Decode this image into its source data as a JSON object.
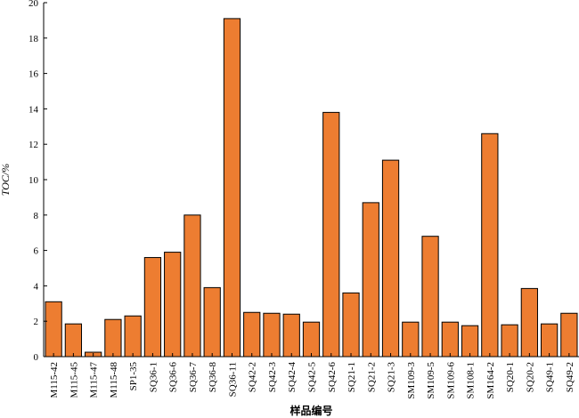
{
  "chart_data": {
    "type": "bar",
    "title": "",
    "xlabel": "样品编号",
    "ylabel": "TOC/%",
    "ylim": [
      0,
      20
    ],
    "yticks": [
      0,
      2,
      4,
      6,
      8,
      10,
      12,
      14,
      16,
      18,
      20
    ],
    "bar_color": "#ed7d31",
    "grid": false,
    "legend": "none",
    "categories": [
      "M115-42",
      "M115-45",
      "M115-47",
      "M115-48",
      "SP1-35",
      "SQ36-1",
      "SQ36-6",
      "SQ36-7",
      "SQ36-8",
      "SQ36-11",
      "SQ42-2",
      "SQ42-3",
      "SQ42-4",
      "SQ42-5",
      "SQ42-6",
      "SQ21-1",
      "SQ21-2",
      "SQ21-3",
      "SM109-3",
      "SM109-5",
      "SM109-6",
      "SM108-1",
      "SM164-2",
      "SQ20-1",
      "SQ20-2",
      "SQ49-1",
      "SQ49-2"
    ],
    "values": [
      3.1,
      1.85,
      0.25,
      2.1,
      2.3,
      5.6,
      5.9,
      8.0,
      3.9,
      19.1,
      2.5,
      2.45,
      2.4,
      1.95,
      13.8,
      3.6,
      8.7,
      11.1,
      1.95,
      6.8,
      1.95,
      1.75,
      12.6,
      1.8,
      3.85,
      1.85,
      2.45
    ]
  }
}
